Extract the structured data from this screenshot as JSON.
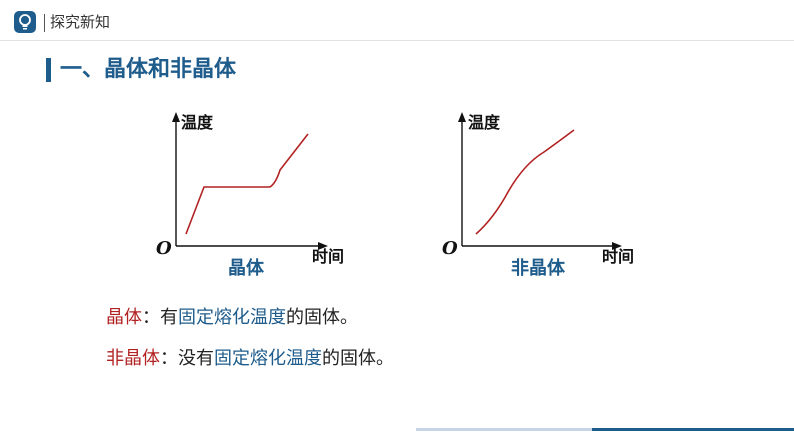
{
  "header": {
    "breadcrumb": "探究新知",
    "accent": "#1e5c8c"
  },
  "section": {
    "title": "一、晶体和非晶体"
  },
  "graphs": [
    {
      "caption": "晶体",
      "ylabel": "温度",
      "xlabel": "时间",
      "origin": "O"
    },
    {
      "caption": "非晶体",
      "ylabel": "温度",
      "xlabel": "时间",
      "origin": "O"
    }
  ],
  "definitions": [
    {
      "term": "晶体",
      "colon": "：",
      "pre": "有",
      "highlight": "固定熔化温度",
      "post": "的固体。"
    },
    {
      "term": "非晶体",
      "colon": "：",
      "pre": "没有",
      "highlight": "固定熔化温度",
      "post": "的固体。"
    }
  ],
  "colors": {
    "curve": "#b22222",
    "term": "#b22222",
    "highlight": "#1e5c8c"
  }
}
